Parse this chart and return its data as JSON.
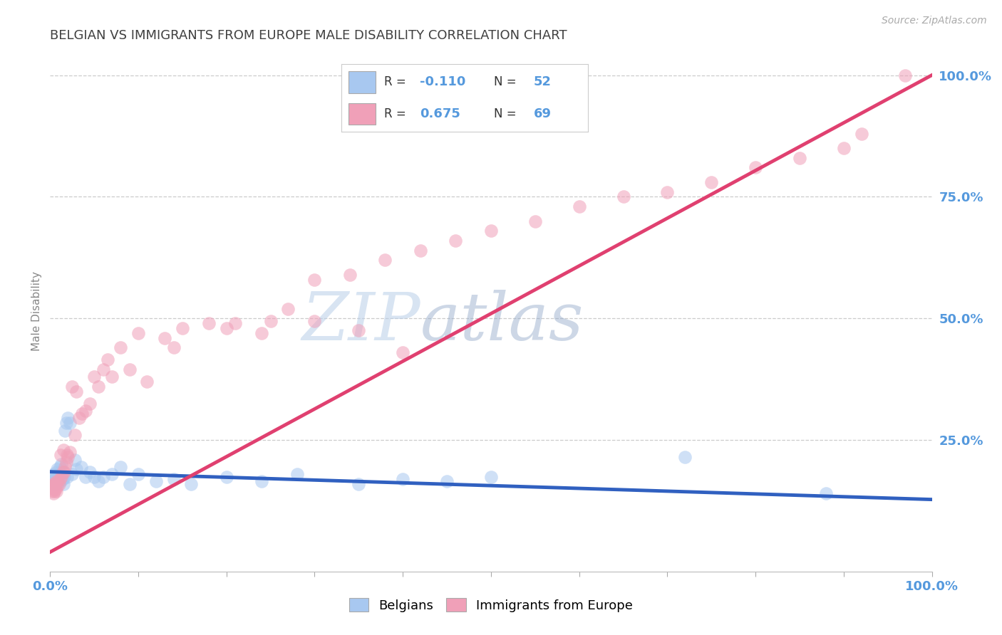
{
  "title": "BELGIAN VS IMMIGRANTS FROM EUROPE MALE DISABILITY CORRELATION CHART",
  "source": "Source: ZipAtlas.com",
  "ylabel": "Male Disability",
  "legend_labels": [
    "Belgians",
    "Immigrants from Europe"
  ],
  "watermark_zip": "ZIP",
  "watermark_atlas": "atlas",
  "r_belgian": -0.11,
  "n_belgian": 52,
  "r_immigrant": 0.675,
  "n_immigrant": 69,
  "blue_color": "#A8C8F0",
  "pink_color": "#F0A0B8",
  "blue_line_color": "#3060C0",
  "pink_line_color": "#E04070",
  "grid_color": "#CCCCCC",
  "title_color": "#404040",
  "axis_label_color": "#5599DD",
  "belgians_x": [
    0.002,
    0.003,
    0.004,
    0.005,
    0.005,
    0.006,
    0.007,
    0.007,
    0.008,
    0.009,
    0.01,
    0.01,
    0.011,
    0.011,
    0.012,
    0.012,
    0.013,
    0.013,
    0.014,
    0.015,
    0.015,
    0.016,
    0.017,
    0.018,
    0.019,
    0.02,
    0.022,
    0.025,
    0.028,
    0.03,
    0.035,
    0.04,
    0.045,
    0.05,
    0.055,
    0.06,
    0.07,
    0.08,
    0.09,
    0.1,
    0.12,
    0.14,
    0.16,
    0.2,
    0.24,
    0.28,
    0.35,
    0.4,
    0.45,
    0.5,
    0.72,
    0.88
  ],
  "belgians_y": [
    0.175,
    0.165,
    0.18,
    0.16,
    0.17,
    0.175,
    0.185,
    0.16,
    0.19,
    0.17,
    0.165,
    0.175,
    0.18,
    0.195,
    0.185,
    0.165,
    0.175,
    0.2,
    0.17,
    0.185,
    0.16,
    0.175,
    0.27,
    0.285,
    0.175,
    0.295,
    0.285,
    0.18,
    0.21,
    0.19,
    0.195,
    0.175,
    0.185,
    0.175,
    0.165,
    0.175,
    0.18,
    0.195,
    0.16,
    0.18,
    0.165,
    0.17,
    0.16,
    0.175,
    0.165,
    0.18,
    0.16,
    0.17,
    0.165,
    0.175,
    0.215,
    0.14
  ],
  "immigrants_x": [
    0.001,
    0.002,
    0.003,
    0.003,
    0.004,
    0.004,
    0.005,
    0.005,
    0.006,
    0.007,
    0.007,
    0.008,
    0.009,
    0.01,
    0.011,
    0.012,
    0.013,
    0.014,
    0.015,
    0.016,
    0.017,
    0.018,
    0.019,
    0.02,
    0.022,
    0.025,
    0.028,
    0.03,
    0.033,
    0.036,
    0.04,
    0.045,
    0.05,
    0.055,
    0.06,
    0.065,
    0.07,
    0.08,
    0.09,
    0.1,
    0.11,
    0.13,
    0.15,
    0.18,
    0.21,
    0.24,
    0.27,
    0.3,
    0.34,
    0.38,
    0.42,
    0.46,
    0.5,
    0.55,
    0.6,
    0.65,
    0.7,
    0.75,
    0.8,
    0.85,
    0.9,
    0.92,
    0.14,
    0.2,
    0.25,
    0.3,
    0.35,
    0.4,
    0.97
  ],
  "immigrants_y": [
    0.155,
    0.145,
    0.16,
    0.15,
    0.14,
    0.155,
    0.145,
    0.16,
    0.15,
    0.165,
    0.145,
    0.155,
    0.165,
    0.16,
    0.17,
    0.22,
    0.175,
    0.185,
    0.23,
    0.185,
    0.195,
    0.205,
    0.22,
    0.215,
    0.225,
    0.36,
    0.26,
    0.35,
    0.295,
    0.305,
    0.31,
    0.325,
    0.38,
    0.36,
    0.395,
    0.415,
    0.38,
    0.44,
    0.395,
    0.47,
    0.37,
    0.46,
    0.48,
    0.49,
    0.49,
    0.47,
    0.52,
    0.58,
    0.59,
    0.62,
    0.64,
    0.66,
    0.68,
    0.7,
    0.73,
    0.75,
    0.76,
    0.78,
    0.81,
    0.83,
    0.85,
    0.88,
    0.44,
    0.48,
    0.495,
    0.495,
    0.475,
    0.43,
    1.0
  ],
  "xlim": [
    0.0,
    1.0
  ],
  "ylim": [
    -0.02,
    1.05
  ],
  "right_yticks": [
    0.0,
    0.25,
    0.5,
    0.75,
    1.0
  ],
  "right_yticklabels": [
    "",
    "25.0%",
    "50.0%",
    "75.0%",
    "100.0%"
  ],
  "blue_line_x0": 0.0,
  "blue_line_x1": 1.0,
  "blue_line_y0": 0.185,
  "blue_line_y1": 0.128,
  "pink_line_x0": 0.0,
  "pink_line_x1": 1.0,
  "pink_line_y0": 0.02,
  "pink_line_y1": 1.0
}
